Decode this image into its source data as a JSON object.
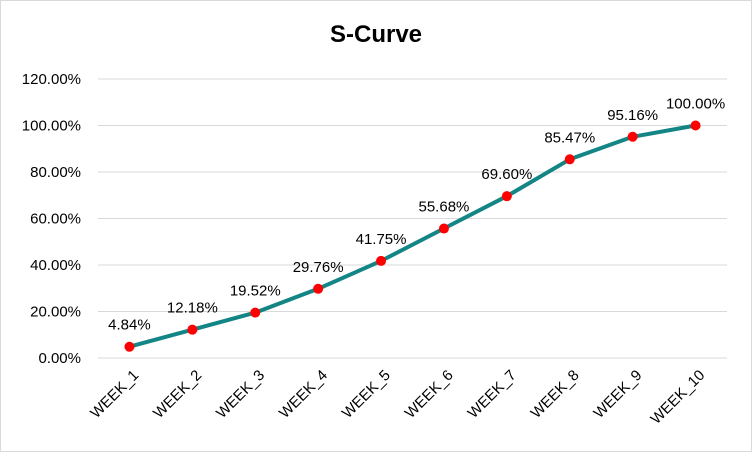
{
  "chart_data": {
    "type": "line",
    "title": "S-Curve",
    "xlabel": "",
    "ylabel": "",
    "categories": [
      "WEEK_1",
      "WEEK_2",
      "WEEK_3",
      "WEEK_4",
      "WEEK_5",
      "WEEK_6",
      "WEEK_7",
      "WEEK_8",
      "WEEK_9",
      "WEEK_10"
    ],
    "values": [
      4.84,
      12.18,
      19.52,
      29.76,
      41.75,
      55.68,
      69.6,
      85.47,
      95.16,
      100.0
    ],
    "data_labels": [
      "4.84%",
      "12.18%",
      "19.52%",
      "29.76%",
      "41.75%",
      "55.68%",
      "69.60%",
      "85.47%",
      "95.16%",
      "100.00%"
    ],
    "y_ticks": [
      0,
      20,
      40,
      60,
      80,
      100,
      120
    ],
    "y_tick_labels": [
      "0.00%",
      "20.00%",
      "40.00%",
      "60.00%",
      "80.00%",
      "100.00%",
      "120.00%"
    ],
    "ylim": [
      0,
      120
    ],
    "grid": true,
    "legend": "none",
    "colors": {
      "line": "#148585",
      "marker": "#ff0000",
      "grid": "#d9d9d9"
    }
  }
}
